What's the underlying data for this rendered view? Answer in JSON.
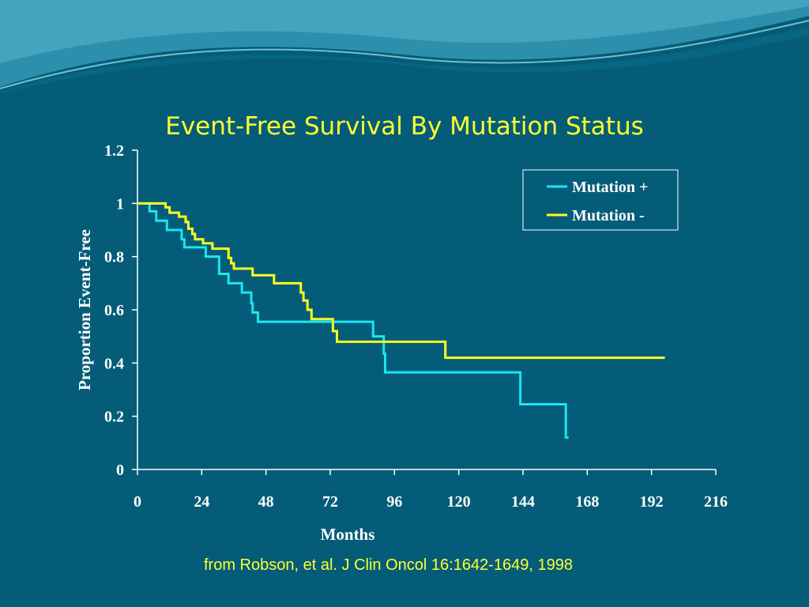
{
  "slide": {
    "title": "Event-Free Survival By Mutation Status",
    "citation": "from Robson, et al. J Clin Oncol 16:1642-1649, 1998"
  },
  "colors": {
    "background": "#045c78",
    "wave_light": "#2f93ad",
    "wave_highlight": "#7fd0e0",
    "title": "#ffff33",
    "axis": "#ffffff"
  },
  "chart_data": {
    "type": "line",
    "step": true,
    "xlabel": "Months",
    "ylabel": "Proportion Event-Free",
    "xlim": [
      0,
      216
    ],
    "ylim": [
      0,
      1.2
    ],
    "x_ticks": [
      "0",
      "24",
      "48",
      "72",
      "96",
      "120",
      "144",
      "168",
      "192",
      "216"
    ],
    "y_ticks": [
      "0",
      "0.2",
      "0.4",
      "0.6",
      "0.8",
      "1",
      "1.2"
    ],
    "legend": {
      "position": "top-right"
    },
    "series": [
      {
        "name": "Mutation +",
        "color": "#19e6f0",
        "points": [
          [
            0,
            1.0
          ],
          [
            4.5,
            0.97
          ],
          [
            7,
            0.935
          ],
          [
            11,
            0.9
          ],
          [
            16.5,
            0.865
          ],
          [
            17.5,
            0.835
          ],
          [
            25.5,
            0.8
          ],
          [
            30.5,
            0.735
          ],
          [
            34,
            0.7
          ],
          [
            39,
            0.665
          ],
          [
            42.5,
            0.625
          ],
          [
            43,
            0.59
          ],
          [
            45,
            0.555
          ],
          [
            88,
            0.5
          ],
          [
            92,
            0.435
          ],
          [
            92.5,
            0.365
          ],
          [
            143,
            0.245
          ],
          [
            160,
            0.12
          ],
          [
            161,
            0.12
          ]
        ]
      },
      {
        "name": "Mutation -",
        "color": "#ffff22",
        "points": [
          [
            0,
            1.0
          ],
          [
            10.5,
            0.985
          ],
          [
            12,
            0.965
          ],
          [
            15.5,
            0.95
          ],
          [
            18,
            0.93
          ],
          [
            19,
            0.905
          ],
          [
            20.5,
            0.885
          ],
          [
            21.5,
            0.865
          ],
          [
            24.5,
            0.85
          ],
          [
            28,
            0.83
          ],
          [
            34,
            0.795
          ],
          [
            35,
            0.775
          ],
          [
            36,
            0.755
          ],
          [
            43,
            0.73
          ],
          [
            51,
            0.7
          ],
          [
            61,
            0.665
          ],
          [
            62,
            0.635
          ],
          [
            63.5,
            0.6
          ],
          [
            65,
            0.565
          ],
          [
            73,
            0.52
          ],
          [
            74.5,
            0.48
          ],
          [
            115,
            0.42
          ],
          [
            197,
            0.42
          ]
        ]
      }
    ]
  }
}
